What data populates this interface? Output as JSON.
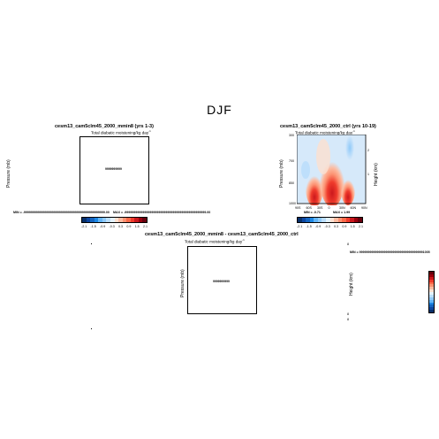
{
  "figure": {
    "title": "DJF"
  },
  "palette": [
    "#08306b",
    "#0d47a1",
    "#1565c0",
    "#1e88e5",
    "#64b5f6",
    "#90caf9",
    "#bbdefb",
    "#e3f2fd",
    "#fde0d0",
    "#fcbba1",
    "#fc9272",
    "#fb6a4a",
    "#ef3b2c",
    "#cb181d",
    "#99000d",
    "#67000d"
  ],
  "colorbar_labels": [
    "-2.1",
    "-1.5",
    "-0.9",
    "-0.3",
    "0.3",
    "0.9",
    "1.5",
    "2.1"
  ],
  "chart_data": [
    {
      "type": "heatmap",
      "title": "cesm13_cam5clm45_2000_mmin8 (yrs 1-3)",
      "subtitle": "Total diabatic moistening/kg day",
      "subtitle_sup": "-1",
      "ylabel": "Pressure (mb)",
      "center_text": "9999999999",
      "stats": {
        "min": "MIN = -9999999999999999999999999999999999999999999999.00",
        "max": "MAX = -9999999999999999999999999999999999999999999999.00"
      }
    },
    {
      "type": "heatmap",
      "title": "cesm13_cam5clm45_2000_ctrl (yrs 10-19)",
      "subtitle": "Total diabatic moistening/kg day",
      "subtitle_sup": "-1",
      "ylabel": "Pressure (mb)",
      "y2label": "Height (km)",
      "yticks": [
        "300",
        "700",
        "850",
        "1000"
      ],
      "y2ticks": [
        "2",
        "1"
      ],
      "xticks": [
        "90S",
        "60S",
        "30S",
        "0",
        "30N",
        "60N",
        "90N"
      ],
      "stats": {
        "min": "MIN = -0.71",
        "max": "MAX = 1.99"
      }
    },
    {
      "type": "heatmap",
      "title": "cesm13_cam5clm45_2000_mmin8 - cesm13_cam5clm45_2000_ctrl",
      "subtitle": "Total diabatic moistening/kg day",
      "subtitle_sup": "-1",
      "ylabel": "Pressure (mb)",
      "y2label": "Height (km)",
      "center_text": "9999999999",
      "stats": {
        "min": "MIN = 9999999999999999999999999999999999991005"
      },
      "right_ticks": [
        "8",
        "8",
        "8"
      ]
    }
  ]
}
